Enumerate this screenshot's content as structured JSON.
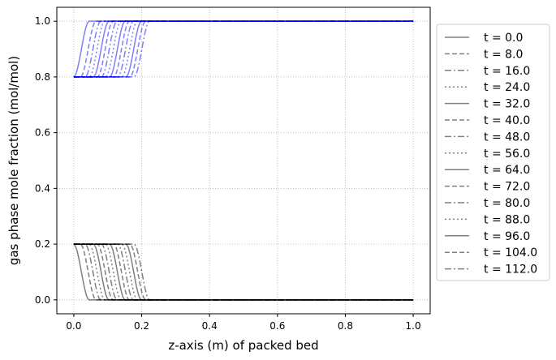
{
  "chart_data": {
    "type": "line",
    "title": "",
    "xlabel": "z-axis (m) of packed bed",
    "ylabel": "gas phase mole fraction (mol/mol)",
    "xlim": [
      -0.05,
      1.05
    ],
    "ylim": [
      -0.05,
      1.05
    ],
    "xticks": [
      0.0,
      0.2,
      0.4,
      0.6,
      0.8,
      1.0
    ],
    "xtick_labels": [
      "0.0",
      "0.2",
      "0.4",
      "0.6",
      "0.8",
      "1.0"
    ],
    "yticks": [
      0.0,
      0.2,
      0.4,
      0.6,
      0.8,
      1.0
    ],
    "ytick_labels": [
      "0.0",
      "0.2",
      "0.4",
      "0.6",
      "0.8",
      "1.0"
    ],
    "grid": true,
    "legend_position": "outside right",
    "colors": {
      "component_1": "#0000ff",
      "component_2": "#000000",
      "legend_line": "#808080"
    },
    "series": [
      {
        "name": "t = 0.0",
        "style": "solid",
        "front_z": 0.0,
        "y_low_start": 0.2,
        "y_high_start": 0.8,
        "y_low_end": 0.0,
        "y_high_end": 1.0
      },
      {
        "name": "t = 8.0",
        "style": "dashed",
        "front_z": 0.02,
        "y_low_start": 0.2,
        "y_high_start": 0.8,
        "y_low_end": 0.0,
        "y_high_end": 1.0
      },
      {
        "name": "t = 16.0",
        "style": "dashdot",
        "front_z": 0.034,
        "y_low_start": 0.2,
        "y_high_start": 0.8,
        "y_low_end": 0.0,
        "y_high_end": 1.0
      },
      {
        "name": "t = 24.0",
        "style": "dotted",
        "front_z": 0.046,
        "y_low_start": 0.2,
        "y_high_start": 0.8,
        "y_low_end": 0.0,
        "y_high_end": 1.0
      },
      {
        "name": "t = 32.0",
        "style": "solid",
        "front_z": 0.058,
        "y_low_start": 0.2,
        "y_high_start": 0.8,
        "y_low_end": 0.0,
        "y_high_end": 1.0
      },
      {
        "name": "t = 40.0",
        "style": "dashed",
        "front_z": 0.07,
        "y_low_start": 0.2,
        "y_high_start": 0.8,
        "y_low_end": 0.0,
        "y_high_end": 1.0
      },
      {
        "name": "t = 48.0",
        "style": "dashdot",
        "front_z": 0.082,
        "y_low_start": 0.2,
        "y_high_start": 0.8,
        "y_low_end": 0.0,
        "y_high_end": 1.0
      },
      {
        "name": "t = 56.0",
        "style": "dotted",
        "front_z": 0.094,
        "y_low_start": 0.2,
        "y_high_start": 0.8,
        "y_low_end": 0.0,
        "y_high_end": 1.0
      },
      {
        "name": "t = 64.0",
        "style": "solid",
        "front_z": 0.106,
        "y_low_start": 0.2,
        "y_high_start": 0.8,
        "y_low_end": 0.0,
        "y_high_end": 1.0
      },
      {
        "name": "t = 72.0",
        "style": "dashed",
        "front_z": 0.118,
        "y_low_start": 0.2,
        "y_high_start": 0.8,
        "y_low_end": 0.0,
        "y_high_end": 1.0
      },
      {
        "name": "t = 80.0",
        "style": "dashdot",
        "front_z": 0.13,
        "y_low_start": 0.2,
        "y_high_start": 0.8,
        "y_low_end": 0.0,
        "y_high_end": 1.0
      },
      {
        "name": "t = 88.0",
        "style": "dotted",
        "front_z": 0.142,
        "y_low_start": 0.2,
        "y_high_start": 0.8,
        "y_low_end": 0.0,
        "y_high_end": 1.0
      },
      {
        "name": "t = 96.0",
        "style": "solid",
        "front_z": 0.154,
        "y_low_start": 0.2,
        "y_high_start": 0.8,
        "y_low_end": 0.0,
        "y_high_end": 1.0
      },
      {
        "name": "t = 104.0",
        "style": "dashed",
        "front_z": 0.166,
        "y_low_start": 0.2,
        "y_high_start": 0.8,
        "y_low_end": 0.0,
        "y_high_end": 1.0
      },
      {
        "name": "t = 112.0",
        "style": "dashdot",
        "front_z": 0.178,
        "y_low_start": 0.2,
        "y_high_start": 0.8,
        "y_low_end": 0.0,
        "y_high_end": 1.0
      }
    ]
  }
}
